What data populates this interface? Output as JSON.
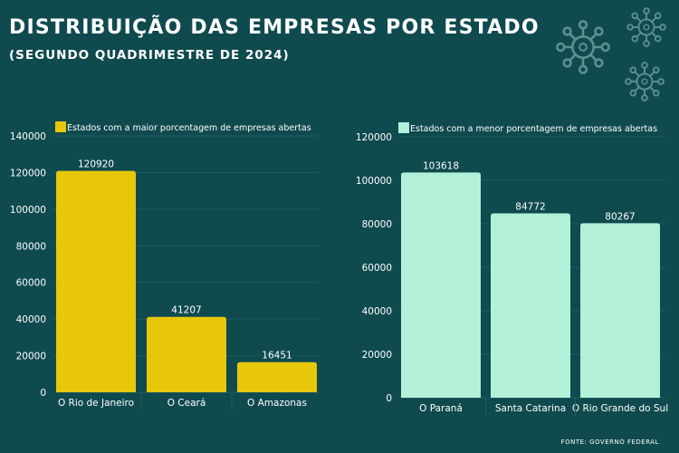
{
  "header": {
    "title": "DISTRIBUIÇÃO DAS EMPRESAS POR ESTADO",
    "subtitle": "(SEGUNDO QUADRIMESTRE DE 2024)"
  },
  "source": "FONTE: GOVERNO FEDERAL",
  "colors": {
    "background": "#0f4a4f",
    "left_bars": "#e8c60a",
    "right_bars": "#b3f0d8",
    "decoration": "#5f8f90"
  },
  "decoration_icons": [
    "virus-icon",
    "virus-icon",
    "virus-icon"
  ],
  "chart_data": [
    {
      "type": "bar",
      "legend": "Estados com a maior porcentagem de empresas abertas",
      "legend_position": "top",
      "categories": [
        "O Rio de Janeiro",
        "O Ceará",
        "O Amazonas"
      ],
      "values": [
        120920,
        41207,
        16451
      ],
      "data_labels": [
        "120920",
        "41207",
        "16451"
      ],
      "ylim": [
        0,
        140000
      ],
      "yticks": [
        "0",
        "20000",
        "40000",
        "60000",
        "80000",
        "100000",
        "120000",
        "140000"
      ],
      "grid": true,
      "color": "#e8c60a"
    },
    {
      "type": "bar",
      "legend": "Estados com a menor porcentagem de empresas abertas",
      "legend_position": "top",
      "categories": [
        "O Paraná",
        "Santa Catarina",
        "O Rio Grande do Sul"
      ],
      "values": [
        103618,
        84772,
        80267
      ],
      "data_labels": [
        "103618",
        "84772",
        "80267"
      ],
      "ylim": [
        0,
        120000
      ],
      "yticks": [
        "0",
        "20000",
        "40000",
        "60000",
        "80000",
        "100000",
        "120000"
      ],
      "grid": true,
      "color": "#b3f0d8"
    }
  ]
}
